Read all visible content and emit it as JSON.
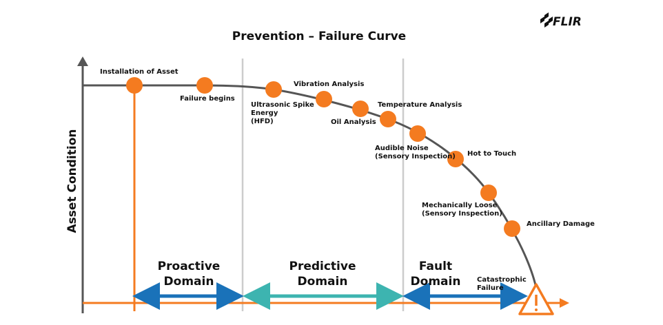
{
  "logo": "FLIR",
  "title": "Prevention – Failure Curve",
  "y_axis_label": "Asset Condition",
  "points": [
    {
      "label": [
        "Installation of Asset"
      ]
    },
    {
      "label": [
        "Failure begins"
      ]
    },
    {
      "label": [
        "Ultrasonic Spike",
        "Energy",
        "(HFD)"
      ]
    },
    {
      "label": [
        "Vibration Analysis"
      ]
    },
    {
      "label": [
        "Oil Analysis"
      ]
    },
    {
      "label": [
        "Temperature Analysis"
      ]
    },
    {
      "label": [
        "Audible Noise",
        "(Sensory Inspection)"
      ]
    },
    {
      "label": [
        "Hot to Touch"
      ]
    },
    {
      "label": [
        "Mechanically Loose",
        "(Sensory Inspection)"
      ]
    },
    {
      "label": [
        "Ancillary Damage"
      ]
    }
  ],
  "domains": [
    {
      "label": [
        "Proactive",
        "Domain"
      ]
    },
    {
      "label": [
        "Predictive",
        "Domain"
      ]
    },
    {
      "label": [
        "Fault",
        "Domain"
      ]
    }
  ],
  "end_label": [
    "Catastrophic",
    "Failure"
  ]
}
